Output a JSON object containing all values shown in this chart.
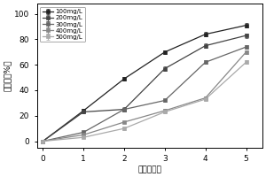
{
  "xlabel": "时间（时）",
  "ylabel": "脱色率（%）",
  "xlim": [
    -0.15,
    5.4
  ],
  "ylim": [
    -5,
    108
  ],
  "xticks": [
    0,
    1,
    2,
    3,
    4,
    5
  ],
  "yticks": [
    0,
    20,
    40,
    60,
    80,
    100
  ],
  "x": [
    0,
    1,
    2,
    3,
    4,
    5
  ],
  "series": [
    {
      "label": "100mg/L",
      "y": [
        0,
        24,
        49,
        70,
        84,
        91
      ],
      "yerr": [
        0,
        1.2,
        1.5,
        1.5,
        1.8,
        2.0
      ]
    },
    {
      "label": "200mg/L",
      "y": [
        0,
        23,
        25,
        57,
        75,
        83
      ],
      "yerr": [
        0,
        1.2,
        1.5,
        1.5,
        1.8,
        1.8
      ]
    },
    {
      "label": "300mg/L",
      "y": [
        0,
        7,
        25,
        32,
        62,
        74
      ],
      "yerr": [
        0,
        0.8,
        1.2,
        1.2,
        1.5,
        1.5
      ]
    },
    {
      "label": "400mg/L",
      "y": [
        0,
        5,
        15,
        24,
        34,
        70
      ],
      "yerr": [
        0,
        0.8,
        1.0,
        1.2,
        1.2,
        1.5
      ]
    },
    {
      "label": "500mg/L",
      "y": [
        0,
        3,
        10,
        23,
        33,
        62
      ],
      "yerr": [
        0,
        0.8,
        1.0,
        1.2,
        1.2,
        1.5
      ]
    }
  ],
  "colors": [
    "#222222",
    "#444444",
    "#666666",
    "#888888",
    "#aaaaaa"
  ],
  "background_color": "#ffffff",
  "legend_fontsize": 5.0,
  "axis_fontsize": 6.5,
  "tick_fontsize": 6.5,
  "linewidth": 0.9,
  "markersize": 3.0
}
